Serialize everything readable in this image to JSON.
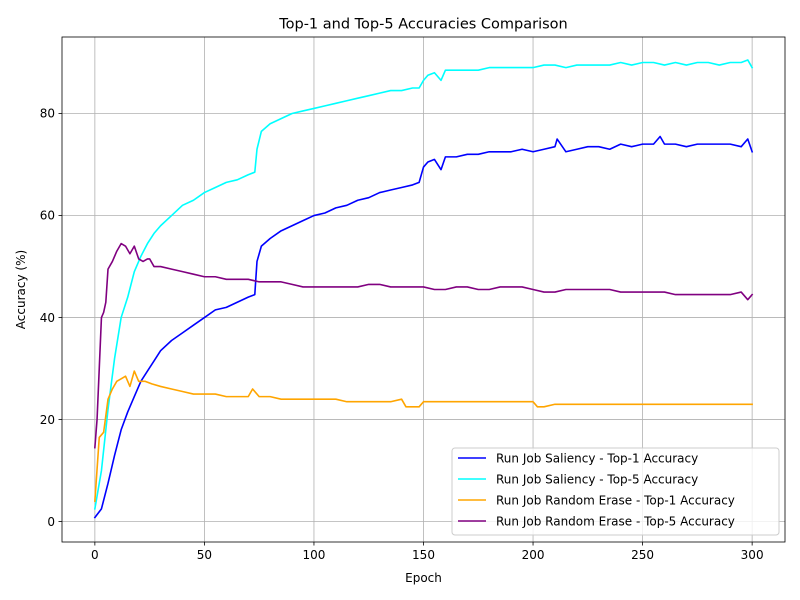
{
  "chart_data": {
    "type": "line",
    "title": "Top-1 and Top-5 Accuracies Comparison",
    "xlabel": "Epoch",
    "ylabel": "Accuracy (%)",
    "xlim": [
      -15,
      315
    ],
    "ylim": [
      -4,
      95
    ],
    "xticks": [
      0,
      50,
      100,
      150,
      200,
      250,
      300
    ],
    "yticks": [
      0,
      20,
      40,
      60,
      80
    ],
    "grid": true,
    "legend_position": "lower-right",
    "series": [
      {
        "name": "Run Job Saliency - Top-1 Accuracy",
        "color": "#0000ff",
        "x": [
          0,
          3,
          6,
          9,
          12,
          15,
          18,
          21,
          24,
          27,
          30,
          35,
          40,
          45,
          50,
          55,
          60,
          65,
          70,
          73,
          74,
          76,
          80,
          85,
          90,
          95,
          100,
          105,
          110,
          115,
          120,
          125,
          130,
          135,
          140,
          145,
          148,
          150,
          152,
          155,
          158,
          160,
          165,
          170,
          175,
          180,
          185,
          190,
          195,
          200,
          205,
          210,
          211,
          215,
          220,
          225,
          230,
          235,
          240,
          245,
          250,
          255,
          258,
          260,
          265,
          270,
          275,
          280,
          285,
          290,
          295,
          298,
          300
        ],
        "y": [
          0.8,
          2.5,
          7.5,
          13.0,
          18.0,
          21.5,
          24.5,
          27.5,
          29.5,
          31.5,
          33.5,
          35.5,
          37.0,
          38.5,
          40.0,
          41.5,
          42.0,
          43.0,
          44.0,
          44.5,
          51.0,
          54.0,
          55.5,
          57.0,
          58.0,
          59.0,
          60.0,
          60.5,
          61.5,
          62.0,
          63.0,
          63.5,
          64.5,
          65.0,
          65.5,
          66.0,
          66.5,
          69.5,
          70.5,
          71.0,
          69.0,
          71.5,
          71.5,
          72.0,
          72.0,
          72.5,
          72.5,
          72.5,
          73.0,
          72.5,
          73.0,
          73.5,
          75.0,
          72.5,
          73.0,
          73.5,
          73.5,
          73.0,
          74.0,
          73.5,
          74.0,
          74.0,
          75.5,
          74.0,
          74.0,
          73.5,
          74.0,
          74.0,
          74.0,
          74.0,
          73.5,
          75.0,
          72.5
        ]
      },
      {
        "name": "Run Job Saliency - Top-5 Accuracy",
        "color": "#00ffff",
        "x": [
          0,
          3,
          6,
          9,
          12,
          15,
          18,
          21,
          24,
          27,
          30,
          35,
          40,
          45,
          50,
          55,
          60,
          65,
          70,
          73,
          74,
          76,
          80,
          85,
          90,
          95,
          100,
          105,
          110,
          115,
          120,
          125,
          130,
          135,
          140,
          145,
          148,
          150,
          152,
          155,
          158,
          160,
          165,
          170,
          175,
          180,
          185,
          190,
          195,
          200,
          205,
          210,
          215,
          220,
          225,
          230,
          235,
          240,
          245,
          250,
          255,
          260,
          265,
          270,
          275,
          280,
          285,
          290,
          295,
          298,
          300
        ],
        "y": [
          2.5,
          10.0,
          22.0,
          32.0,
          40.0,
          44.0,
          49.0,
          52.0,
          54.5,
          56.5,
          58.0,
          60.0,
          62.0,
          63.0,
          64.5,
          65.5,
          66.5,
          67.0,
          68.0,
          68.5,
          73.0,
          76.5,
          78.0,
          79.0,
          80.0,
          80.5,
          81.0,
          81.5,
          82.0,
          82.5,
          83.0,
          83.5,
          84.0,
          84.5,
          84.5,
          85.0,
          85.0,
          86.5,
          87.5,
          88.0,
          86.5,
          88.5,
          88.5,
          88.5,
          88.5,
          89.0,
          89.0,
          89.0,
          89.0,
          89.0,
          89.5,
          89.5,
          89.0,
          89.5,
          89.5,
          89.5,
          89.5,
          90.0,
          89.5,
          90.0,
          90.0,
          89.5,
          90.0,
          89.5,
          90.0,
          90.0,
          89.5,
          90.0,
          90.0,
          90.5,
          89.0
        ]
      },
      {
        "name": "Run Job Random Erase - Top-1 Accuracy",
        "color": "#ffa500",
        "x": [
          0,
          2,
          4,
          6,
          8,
          10,
          12,
          14,
          16,
          18,
          20,
          23,
          26,
          30,
          35,
          40,
          45,
          50,
          55,
          60,
          65,
          70,
          72,
          75,
          80,
          85,
          90,
          95,
          100,
          105,
          110,
          115,
          120,
          125,
          130,
          135,
          140,
          142,
          145,
          148,
          150,
          152,
          155,
          160,
          165,
          170,
          175,
          180,
          185,
          190,
          195,
          200,
          202,
          205,
          210,
          215,
          220,
          225,
          230,
          235,
          240,
          245,
          250,
          255,
          260,
          265,
          270,
          275,
          280,
          285,
          290,
          295,
          300
        ],
        "y": [
          4.0,
          16.5,
          17.5,
          24.0,
          26.0,
          27.5,
          28.0,
          28.5,
          26.5,
          29.5,
          27.5,
          27.5,
          27.0,
          26.5,
          26.0,
          25.5,
          25.0,
          25.0,
          25.0,
          24.5,
          24.5,
          24.5,
          26.0,
          24.5,
          24.5,
          24.0,
          24.0,
          24.0,
          24.0,
          24.0,
          24.0,
          23.5,
          23.5,
          23.5,
          23.5,
          23.5,
          24.0,
          22.5,
          22.5,
          22.5,
          23.5,
          23.5,
          23.5,
          23.5,
          23.5,
          23.5,
          23.5,
          23.5,
          23.5,
          23.5,
          23.5,
          23.5,
          22.5,
          22.5,
          23.0,
          23.0,
          23.0,
          23.0,
          23.0,
          23.0,
          23.0,
          23.0,
          23.0,
          23.0,
          23.0,
          23.0,
          23.0,
          23.0,
          23.0,
          23.0,
          23.0,
          23.0,
          23.0
        ]
      },
      {
        "name": "Run Job Random Erase - Top-5 Accuracy",
        "color": "#800080",
        "x": [
          0,
          1,
          2,
          3,
          4,
          5,
          6,
          8,
          10,
          12,
          14,
          16,
          18,
          20,
          22,
          24,
          25,
          27,
          30,
          35,
          40,
          45,
          50,
          55,
          60,
          65,
          70,
          75,
          80,
          85,
          90,
          95,
          100,
          105,
          110,
          115,
          120,
          125,
          130,
          135,
          140,
          145,
          150,
          155,
          160,
          165,
          170,
          175,
          180,
          185,
          190,
          195,
          200,
          205,
          210,
          215,
          220,
          225,
          230,
          235,
          240,
          245,
          250,
          255,
          260,
          265,
          270,
          275,
          280,
          285,
          290,
          295,
          298,
          300
        ],
        "y": [
          14.5,
          20.0,
          30.0,
          40.0,
          41.0,
          43.0,
          49.5,
          51.0,
          53.0,
          54.5,
          54.0,
          52.5,
          54.0,
          51.5,
          51.0,
          51.5,
          51.5,
          50.0,
          50.0,
          49.5,
          49.0,
          48.5,
          48.0,
          48.0,
          47.5,
          47.5,
          47.5,
          47.0,
          47.0,
          47.0,
          46.5,
          46.0,
          46.0,
          46.0,
          46.0,
          46.0,
          46.0,
          46.5,
          46.5,
          46.0,
          46.0,
          46.0,
          46.0,
          45.5,
          45.5,
          46.0,
          46.0,
          45.5,
          45.5,
          46.0,
          46.0,
          46.0,
          45.5,
          45.0,
          45.0,
          45.5,
          45.5,
          45.5,
          45.5,
          45.5,
          45.0,
          45.0,
          45.0,
          45.0,
          45.0,
          44.5,
          44.5,
          44.5,
          44.5,
          44.5,
          44.5,
          45.0,
          43.5,
          44.5
        ]
      }
    ]
  }
}
